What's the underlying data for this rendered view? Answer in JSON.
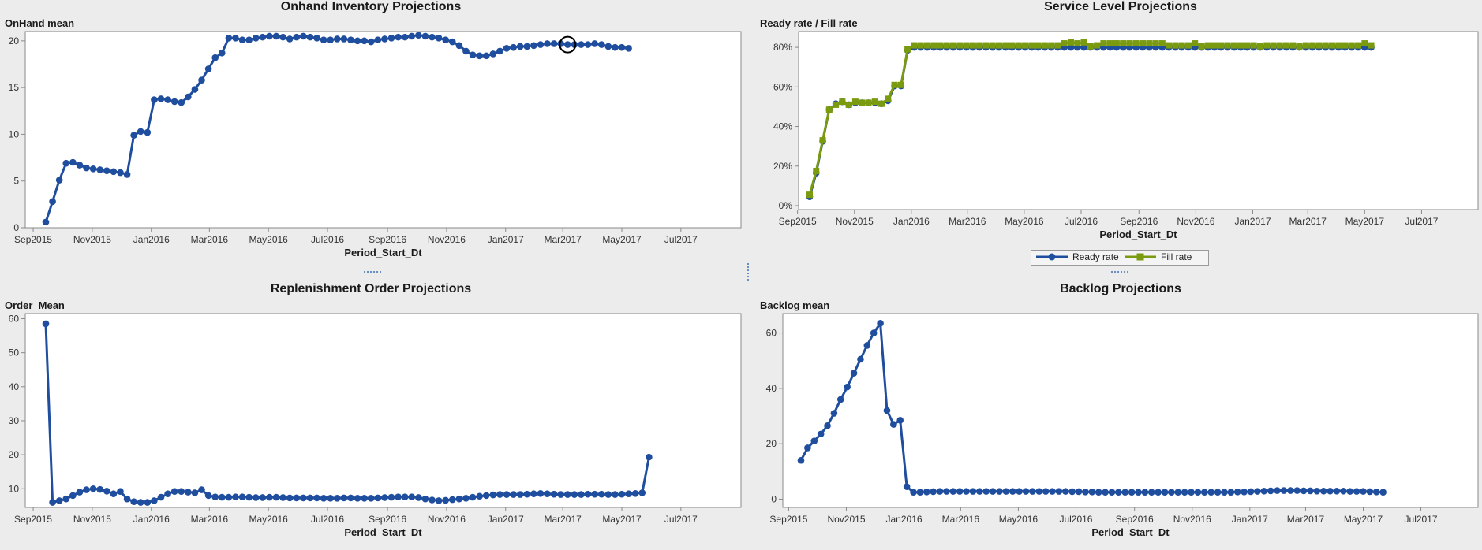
{
  "colors": {
    "ready": "#1f4e9e",
    "fill": "#7a9a10",
    "ready_border": "#16346b",
    "fill_border": "#5c7410",
    "axis": "#8a8a8a",
    "panel_bg": "#ffffff"
  },
  "months": [
    "Sep2015",
    "Nov2015",
    "Jan2016",
    "Mar2016",
    "May2016",
    "Jul2016",
    "Sep2016",
    "Nov2016",
    "Jan2017",
    "Mar2017",
    "May2017",
    "Jul2017"
  ],
  "legend": {
    "ready_label": "Ready rate",
    "fill_label": "Fill rate"
  },
  "chart_data": [
    {
      "id": "onhand",
      "type": "line",
      "title": "Onhand Inventory Projections",
      "ylabel": "OnHand mean",
      "xlabel": "Period_Start_Dt",
      "ylim": [
        0,
        21
      ],
      "yticks": [
        "0",
        "5",
        "10",
        "15",
        "20"
      ],
      "ytick_values": [
        0,
        5,
        10,
        15,
        20
      ],
      "x_start": "2015-09-14",
      "x_step": "weekly",
      "highlight_index": 77,
      "series": [
        {
          "color": "ready",
          "marker": "circle",
          "values": [
            0.6,
            2.8,
            5.1,
            6.9,
            7.0,
            6.7,
            6.4,
            6.3,
            6.2,
            6.1,
            6.0,
            5.9,
            5.7,
            9.9,
            10.3,
            10.2,
            13.7,
            13.8,
            13.7,
            13.5,
            13.4,
            14.0,
            14.8,
            15.8,
            17.0,
            18.2,
            18.7,
            20.3,
            20.3,
            20.1,
            20.1,
            20.3,
            20.4,
            20.5,
            20.5,
            20.4,
            20.2,
            20.4,
            20.5,
            20.4,
            20.3,
            20.1,
            20.1,
            20.2,
            20.2,
            20.1,
            20.0,
            20.0,
            19.9,
            20.1,
            20.2,
            20.3,
            20.4,
            20.4,
            20.5,
            20.6,
            20.5,
            20.4,
            20.3,
            20.1,
            19.9,
            19.5,
            18.9,
            18.5,
            18.4,
            18.4,
            18.6,
            18.9,
            19.2,
            19.3,
            19.4,
            19.4,
            19.5,
            19.6,
            19.7,
            19.7,
            19.7,
            19.6,
            19.6,
            19.6,
            19.6,
            19.7,
            19.6,
            19.4,
            19.3,
            19.3,
            19.2
          ]
        }
      ]
    },
    {
      "id": "service",
      "type": "line",
      "title": "Service Level Projections",
      "ylabel": "Ready rate / Fill rate",
      "xlabel": "Period_Start_Dt",
      "ylim": [
        -2,
        88
      ],
      "yticks": [
        "0%",
        "20%",
        "40%",
        "60%",
        "80%"
      ],
      "ytick_values": [
        0,
        20,
        40,
        60,
        80
      ],
      "x_start": "2015-09-14",
      "x_step": "weekly",
      "series": [
        {
          "name": "Ready rate",
          "color": "ready",
          "marker": "circle",
          "values": [
            4.5,
            16.5,
            32.5,
            48.5,
            51.5,
            52.5,
            51,
            52,
            52,
            52,
            52,
            51.5,
            53,
            60.5,
            60.5,
            78.5,
            80,
            80,
            80,
            80,
            80,
            80,
            80,
            80,
            80,
            80,
            80,
            80,
            80,
            80,
            80,
            80,
            80,
            80,
            80,
            80,
            80,
            80,
            80,
            80,
            80,
            80,
            80,
            80,
            80,
            80,
            80,
            80,
            80,
            80,
            80,
            80,
            80,
            80,
            80,
            80,
            80,
            80,
            80,
            80,
            80,
            80,
            80,
            80,
            80,
            80,
            80,
            80,
            80,
            80,
            80,
            80,
            80,
            80,
            80,
            80,
            80,
            80,
            80,
            80,
            80,
            80,
            80,
            80,
            80,
            80,
            80
          ]
        },
        {
          "name": "Fill rate",
          "color": "fill",
          "marker": "square",
          "values": [
            5.5,
            17.5,
            33,
            48.5,
            51,
            52.5,
            51,
            52.5,
            52,
            52,
            52.5,
            51.5,
            54,
            61,
            61,
            79,
            81,
            81,
            81,
            81,
            81,
            81,
            81,
            81,
            81,
            81,
            81,
            81,
            81,
            81,
            81,
            81,
            81,
            81,
            81,
            81,
            81,
            81,
            81,
            82,
            82.5,
            82,
            82.5,
            80.5,
            81,
            82,
            82,
            82,
            82,
            82,
            82,
            82,
            82,
            82,
            82,
            81,
            81,
            81,
            81,
            82,
            80.5,
            81,
            81,
            81,
            81,
            81,
            81,
            81,
            81,
            80.5,
            81,
            81,
            81,
            81,
            81,
            80.5,
            81,
            81,
            81,
            81,
            81,
            81,
            81,
            81,
            81,
            82,
            81
          ]
        }
      ]
    },
    {
      "id": "replenish",
      "type": "line",
      "title": "Replenishment Order Projections",
      "ylabel": "Order_Mean",
      "xlabel": "Period_Start_Dt",
      "ylim": [
        4.5,
        61.5
      ],
      "yticks": [
        "10",
        "20",
        "30",
        "40",
        "50",
        "60"
      ],
      "ytick_values": [
        10,
        20,
        30,
        40,
        50,
        60
      ],
      "x_start": "2015-09-14",
      "x_step": "weekly",
      "series": [
        {
          "color": "ready",
          "marker": "circle",
          "values": [
            58.5,
            6.0,
            6.5,
            7.0,
            8.0,
            9.0,
            9.7,
            10.0,
            9.8,
            9.3,
            8.5,
            9.2,
            7.0,
            6.2,
            6.0,
            6.0,
            6.5,
            7.5,
            8.5,
            9.2,
            9.2,
            9.0,
            8.8,
            9.7,
            8.0,
            7.6,
            7.5,
            7.5,
            7.6,
            7.6,
            7.5,
            7.4,
            7.4,
            7.5,
            7.5,
            7.4,
            7.3,
            7.3,
            7.3,
            7.3,
            7.3,
            7.2,
            7.2,
            7.2,
            7.3,
            7.3,
            7.2,
            7.2,
            7.2,
            7.3,
            7.4,
            7.5,
            7.6,
            7.6,
            7.6,
            7.4,
            7.0,
            6.7,
            6.5,
            6.6,
            6.8,
            7.0,
            7.2,
            7.5,
            7.8,
            8.0,
            8.2,
            8.3,
            8.3,
            8.3,
            8.3,
            8.4,
            8.5,
            8.6,
            8.5,
            8.4,
            8.3,
            8.3,
            8.3,
            8.3,
            8.4,
            8.4,
            8.4,
            8.3,
            8.3,
            8.4,
            8.5,
            8.6,
            8.8,
            19.3
          ]
        }
      ]
    },
    {
      "id": "backlog",
      "type": "line",
      "title": "Backlog Projections",
      "ylabel": "Backlog mean",
      "xlabel": "Period_Start_Dt",
      "ylim": [
        -3,
        67
      ],
      "yticks": [
        "0",
        "20",
        "40",
        "60"
      ],
      "ytick_values": [
        0,
        20,
        40,
        60
      ],
      "x_start": "2015-09-14",
      "x_step": "weekly",
      "series": [
        {
          "color": "ready",
          "marker": "circle",
          "values": [
            14,
            18.5,
            21,
            23.5,
            26.5,
            31,
            36,
            40.5,
            45.5,
            50.5,
            55.5,
            60,
            63.5,
            32,
            27,
            28.5,
            4.5,
            2.5,
            2.5,
            2.6,
            2.7,
            2.8,
            2.8,
            2.8,
            2.8,
            2.8,
            2.8,
            2.8,
            2.8,
            2.8,
            2.8,
            2.8,
            2.8,
            2.8,
            2.8,
            2.8,
            2.8,
            2.8,
            2.8,
            2.8,
            2.8,
            2.7,
            2.7,
            2.6,
            2.6,
            2.5,
            2.5,
            2.5,
            2.5,
            2.5,
            2.5,
            2.5,
            2.5,
            2.5,
            2.5,
            2.5,
            2.5,
            2.5,
            2.5,
            2.5,
            2.5,
            2.5,
            2.5,
            2.5,
            2.5,
            2.5,
            2.6,
            2.6,
            2.7,
            2.8,
            2.9,
            3.0,
            3.1,
            3.1,
            3.1,
            3.1,
            3.0,
            3.0,
            2.9,
            2.9,
            2.9,
            2.9,
            2.9,
            2.8,
            2.8,
            2.8,
            2.7,
            2.6,
            2.5
          ]
        }
      ]
    }
  ]
}
